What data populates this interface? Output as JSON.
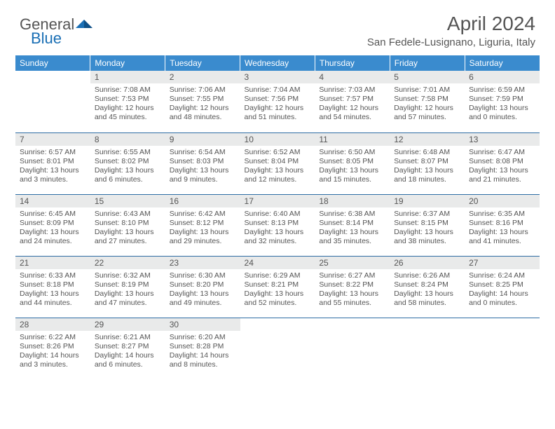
{
  "logo": {
    "word1": "General",
    "word2": "Blue"
  },
  "header": {
    "title": "April 2024",
    "subtitle": "San Fedele-Lusignano, Liguria, Italy"
  },
  "colors": {
    "header_bg": "#3a8bce",
    "header_text": "#ffffff",
    "daynum_bg": "#e9eaea",
    "cell_border": "#2e6da4",
    "text": "#555555",
    "logo_blue": "#1a6fb5"
  },
  "weekdays": [
    "Sunday",
    "Monday",
    "Tuesday",
    "Wednesday",
    "Thursday",
    "Friday",
    "Saturday"
  ],
  "days": [
    {
      "n": "1",
      "sr": "7:08 AM",
      "ss": "7:53 PM",
      "dl": "12 hours and 45 minutes."
    },
    {
      "n": "2",
      "sr": "7:06 AM",
      "ss": "7:55 PM",
      "dl": "12 hours and 48 minutes."
    },
    {
      "n": "3",
      "sr": "7:04 AM",
      "ss": "7:56 PM",
      "dl": "12 hours and 51 minutes."
    },
    {
      "n": "4",
      "sr": "7:03 AM",
      "ss": "7:57 PM",
      "dl": "12 hours and 54 minutes."
    },
    {
      "n": "5",
      "sr": "7:01 AM",
      "ss": "7:58 PM",
      "dl": "12 hours and 57 minutes."
    },
    {
      "n": "6",
      "sr": "6:59 AM",
      "ss": "7:59 PM",
      "dl": "13 hours and 0 minutes."
    },
    {
      "n": "7",
      "sr": "6:57 AM",
      "ss": "8:01 PM",
      "dl": "13 hours and 3 minutes."
    },
    {
      "n": "8",
      "sr": "6:55 AM",
      "ss": "8:02 PM",
      "dl": "13 hours and 6 minutes."
    },
    {
      "n": "9",
      "sr": "6:54 AM",
      "ss": "8:03 PM",
      "dl": "13 hours and 9 minutes."
    },
    {
      "n": "10",
      "sr": "6:52 AM",
      "ss": "8:04 PM",
      "dl": "13 hours and 12 minutes."
    },
    {
      "n": "11",
      "sr": "6:50 AM",
      "ss": "8:05 PM",
      "dl": "13 hours and 15 minutes."
    },
    {
      "n": "12",
      "sr": "6:48 AM",
      "ss": "8:07 PM",
      "dl": "13 hours and 18 minutes."
    },
    {
      "n": "13",
      "sr": "6:47 AM",
      "ss": "8:08 PM",
      "dl": "13 hours and 21 minutes."
    },
    {
      "n": "14",
      "sr": "6:45 AM",
      "ss": "8:09 PM",
      "dl": "13 hours and 24 minutes."
    },
    {
      "n": "15",
      "sr": "6:43 AM",
      "ss": "8:10 PM",
      "dl": "13 hours and 27 minutes."
    },
    {
      "n": "16",
      "sr": "6:42 AM",
      "ss": "8:12 PM",
      "dl": "13 hours and 29 minutes."
    },
    {
      "n": "17",
      "sr": "6:40 AM",
      "ss": "8:13 PM",
      "dl": "13 hours and 32 minutes."
    },
    {
      "n": "18",
      "sr": "6:38 AM",
      "ss": "8:14 PM",
      "dl": "13 hours and 35 minutes."
    },
    {
      "n": "19",
      "sr": "6:37 AM",
      "ss": "8:15 PM",
      "dl": "13 hours and 38 minutes."
    },
    {
      "n": "20",
      "sr": "6:35 AM",
      "ss": "8:16 PM",
      "dl": "13 hours and 41 minutes."
    },
    {
      "n": "21",
      "sr": "6:33 AM",
      "ss": "8:18 PM",
      "dl": "13 hours and 44 minutes."
    },
    {
      "n": "22",
      "sr": "6:32 AM",
      "ss": "8:19 PM",
      "dl": "13 hours and 47 minutes."
    },
    {
      "n": "23",
      "sr": "6:30 AM",
      "ss": "8:20 PM",
      "dl": "13 hours and 49 minutes."
    },
    {
      "n": "24",
      "sr": "6:29 AM",
      "ss": "8:21 PM",
      "dl": "13 hours and 52 minutes."
    },
    {
      "n": "25",
      "sr": "6:27 AM",
      "ss": "8:22 PM",
      "dl": "13 hours and 55 minutes."
    },
    {
      "n": "26",
      "sr": "6:26 AM",
      "ss": "8:24 PM",
      "dl": "13 hours and 58 minutes."
    },
    {
      "n": "27",
      "sr": "6:24 AM",
      "ss": "8:25 PM",
      "dl": "14 hours and 0 minutes."
    },
    {
      "n": "28",
      "sr": "6:22 AM",
      "ss": "8:26 PM",
      "dl": "14 hours and 3 minutes."
    },
    {
      "n": "29",
      "sr": "6:21 AM",
      "ss": "8:27 PM",
      "dl": "14 hours and 6 minutes."
    },
    {
      "n": "30",
      "sr": "6:20 AM",
      "ss": "8:28 PM",
      "dl": "14 hours and 8 minutes."
    }
  ],
  "labels": {
    "sunrise": "Sunrise:",
    "sunset": "Sunset:",
    "daylight": "Daylight:"
  },
  "layout": {
    "start_weekday": 1,
    "rows": 5,
    "cols": 7
  }
}
